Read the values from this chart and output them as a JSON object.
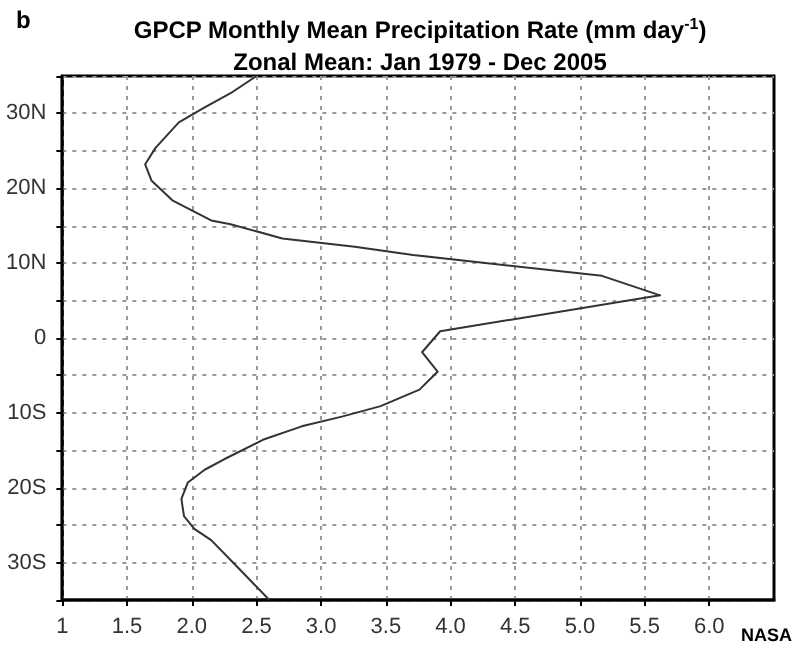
{
  "chart_data": {
    "type": "line",
    "title": "GPCP Monthly Mean Precipitation Rate (mm day$^{-1}$)",
    "subtitle": "Zonal Mean: Jan 1979 - Dec 2005",
    "annotations": [
      "b",
      "NASA"
    ],
    "x": [
      2.6,
      2.37,
      2.15,
      2.02,
      1.94,
      1.92,
      1.97,
      2.1,
      2.25,
      2.55,
      2.85,
      3.16,
      3.46,
      3.76,
      3.9,
      3.78,
      3.92,
      3.99,
      5.62,
      5.17,
      3.71,
      3.26,
      2.7,
      2.3,
      2.15,
      1.85,
      1.69,
      1.64,
      1.72,
      1.9,
      2.1,
      2.3,
      2.5
    ],
    "series": [
      {
        "color": "#333333",
        "values": [
          -35,
          -30.9,
          -27,
          -25.5,
          -23.8,
          -21.5,
          -19.3,
          -17.6,
          -16.2,
          -13.6,
          -11.8,
          -10.5,
          -9.1,
          -6.9,
          -4.5,
          -1.9,
          0.9,
          1.1,
          5.7,
          8.3,
          11.1,
          12.2,
          13.3,
          15.2,
          15.7,
          18.4,
          21,
          23.2,
          25.4,
          28.8,
          30.8,
          32.7,
          35
        ]
      }
    ],
    "xlim": [
      1,
      6.5
    ],
    "xticks": [
      1,
      1.5,
      {
        "value": 2,
        "label": "2.0"
      },
      2.5,
      {
        "value": 3,
        "label": "3.0"
      },
      3.5,
      {
        "value": 4,
        "label": "4.0"
      },
      4.5,
      {
        "value": 5,
        "label": "5.0"
      },
      5.5,
      {
        "value": 6,
        "label": "6.0"
      }
    ],
    "ylim": [
      -35,
      35
    ],
    "yticks": [
      {
        "value": -35,
        "label": null
      },
      {
        "value": -30,
        "label": "30S"
      },
      {
        "value": -25,
        "label": null
      },
      {
        "value": -20,
        "label": "20S"
      },
      {
        "value": -15,
        "label": null
      },
      {
        "value": -10,
        "label": "10S"
      },
      {
        "value": -5,
        "label": null
      },
      0,
      {
        "value": 5,
        "label": null
      },
      {
        "value": 10,
        "label": "10N"
      },
      {
        "value": 15,
        "label": null
      },
      {
        "value": 20,
        "label": "20N"
      },
      {
        "value": 25,
        "label": null
      },
      {
        "value": 30,
        "label": "30N"
      },
      {
        "value": 35,
        "label": null
      }
    ],
    "grid": true,
    "marker": "none",
    "line_style": "solid"
  }
}
